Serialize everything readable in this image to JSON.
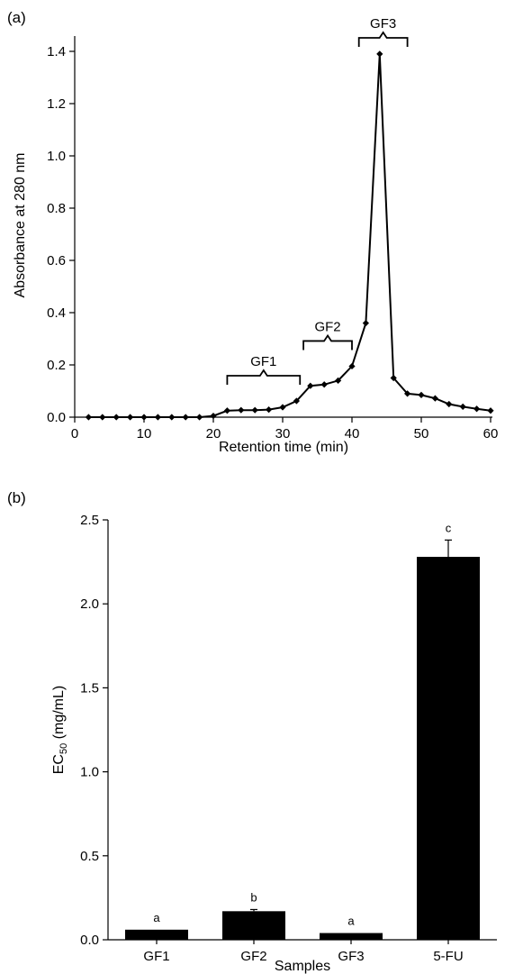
{
  "chart_data": [
    {
      "panel_label": "(a)",
      "type": "line",
      "xlabel": "Retention time (min)",
      "ylabel": "Absorbance at 280 nm",
      "xlim": [
        0,
        60
      ],
      "ylim": [
        0,
        1.4
      ],
      "x_ticks": [
        "0",
        "10",
        "20",
        "30",
        "40",
        "50",
        "60"
      ],
      "y_ticks": [
        "0.0",
        "0.2",
        "0.4",
        "0.6",
        "0.8",
        "1.0",
        "1.2",
        "1.4"
      ],
      "grid": false,
      "marker": "diamond",
      "series": [
        {
          "x": [
            2,
            4,
            6,
            8,
            10,
            12,
            14,
            16,
            18,
            20,
            22,
            24,
            26,
            28,
            30,
            32,
            34,
            36,
            38,
            40,
            42,
            44,
            46,
            48,
            50,
            52,
            54,
            56,
            58,
            60
          ],
          "y": [
            0,
            0,
            0,
            0,
            0,
            0,
            0,
            0,
            0,
            0.005,
            0.025,
            0.027,
            0.027,
            0.029,
            0.038,
            0.062,
            0.12,
            0.125,
            0.14,
            0.195,
            0.36,
            1.39,
            0.15,
            0.09,
            0.085,
            0.072,
            0.05,
            0.04,
            0.032,
            0.025
          ]
        }
      ],
      "fractions": [
        {
          "label": "GF1",
          "x_range": [
            22,
            32.5
          ]
        },
        {
          "label": "GF2",
          "x_range": [
            33,
            40
          ]
        },
        {
          "label": "GF3",
          "x_range": [
            41,
            48
          ]
        }
      ]
    },
    {
      "panel_label": "(b)",
      "type": "bar",
      "xlabel": "Samples",
      "ylabel_main": "EC",
      "ylabel_sub": "50",
      "ylabel_unit": "(mg/mL)",
      "ylim": [
        0,
        2.5
      ],
      "y_ticks": [
        "0.0",
        "0.5",
        "1.0",
        "1.5",
        "2.0",
        "2.5"
      ],
      "categories": [
        "GF1",
        "GF2",
        "GF3",
        "5-FU"
      ],
      "values": [
        0.06,
        0.17,
        0.04,
        2.28
      ],
      "errors": [
        0,
        0.01,
        0,
        0.1
      ],
      "significance": [
        "a",
        "b",
        "a",
        "c"
      ],
      "bar_color": "#000000",
      "grid": false
    }
  ]
}
